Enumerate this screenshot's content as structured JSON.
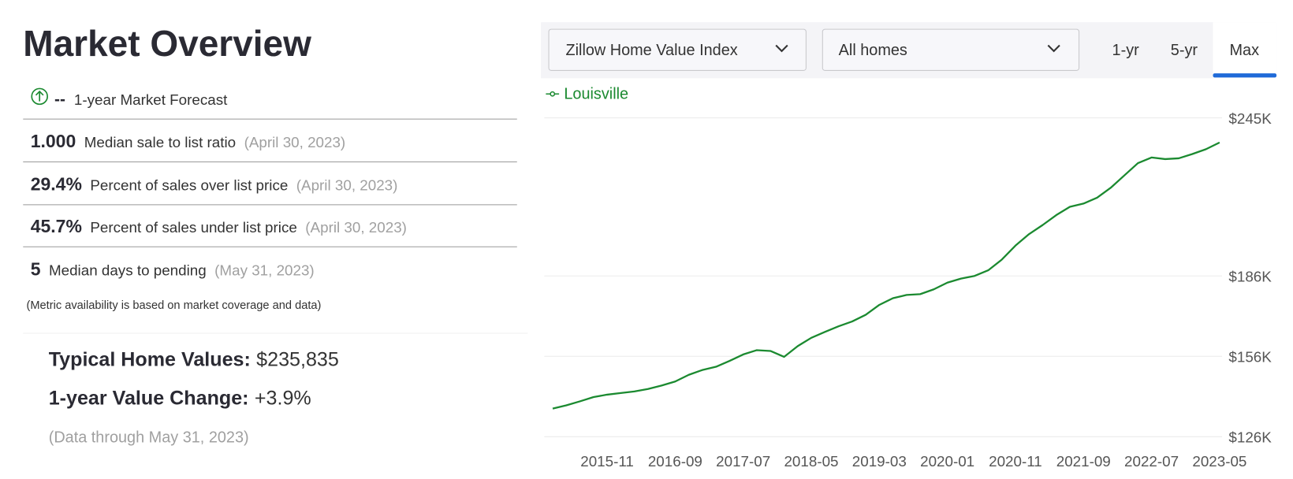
{
  "header": {
    "title": "Market Overview"
  },
  "forecast": {
    "value": "--",
    "label": "1-year Market Forecast"
  },
  "metrics": [
    {
      "value": "1.000",
      "label": "Median sale to list ratio",
      "date": "(April 30, 2023)"
    },
    {
      "value": "29.4%",
      "label": "Percent of sales over list price",
      "date": "(April 30, 2023)"
    },
    {
      "value": "45.7%",
      "label": "Percent of sales under list price",
      "date": "(April 30, 2023)"
    },
    {
      "value": "5",
      "label": "Median days to pending",
      "date": "(May 31, 2023)"
    }
  ],
  "note": "(Metric availability is based on market coverage and data)",
  "summary": {
    "typical_label": "Typical Home Values:",
    "typical_value": "$235,835",
    "change_label": "1-year Value Change:",
    "change_value": "+3.9%",
    "data_through": "(Data through May 31, 2023)"
  },
  "controls": {
    "index_dropdown": "Zillow Home Value Index",
    "home_type_dropdown": "All homes",
    "tabs": [
      "1-yr",
      "5-yr",
      "Max"
    ]
  },
  "chart_data": {
    "type": "line",
    "x": [
      "2015-03",
      "2015-05",
      "2015-07",
      "2015-09",
      "2015-11",
      "2016-01",
      "2016-03",
      "2016-05",
      "2016-07",
      "2016-09",
      "2016-11",
      "2017-01",
      "2017-03",
      "2017-05",
      "2017-07",
      "2017-09",
      "2017-11",
      "2018-01",
      "2018-03",
      "2018-05",
      "2018-07",
      "2018-09",
      "2018-11",
      "2019-01",
      "2019-03",
      "2019-05",
      "2019-07",
      "2019-09",
      "2019-11",
      "2020-01",
      "2020-03",
      "2020-05",
      "2020-07",
      "2020-09",
      "2020-11",
      "2021-01",
      "2021-03",
      "2021-05",
      "2021-07",
      "2021-09",
      "2021-11",
      "2022-01",
      "2022-03",
      "2022-05",
      "2022-07",
      "2022-09",
      "2022-11",
      "2023-01",
      "2023-03",
      "2023-05"
    ],
    "series": [
      {
        "name": "Louisville",
        "color": "#1b8a30",
        "values": [
          136500,
          137700,
          139200,
          140800,
          141700,
          142300,
          142900,
          143800,
          145100,
          146600,
          149100,
          150900,
          152100,
          154300,
          156700,
          158300,
          158000,
          155800,
          159800,
          162900,
          165100,
          167200,
          169000,
          171500,
          175200,
          177700,
          178900,
          179200,
          181000,
          183500,
          185000,
          186000,
          188100,
          192100,
          197300,
          201600,
          205000,
          208700,
          211800,
          213000,
          215200,
          218900,
          223500,
          228100,
          230200,
          229600,
          229900,
          231500,
          233300,
          235800
        ]
      }
    ],
    "xlim": [
      "2015-02",
      "2023-05"
    ],
    "xticks": [
      "2015-11",
      "2016-09",
      "2017-07",
      "2018-05",
      "2019-03",
      "2020-01",
      "2020-11",
      "2021-09",
      "2022-07",
      "2023-05"
    ],
    "ylim": [
      126000,
      245000
    ],
    "yticks": [
      {
        "value": 126000,
        "label": "$126K"
      },
      {
        "value": 156000,
        "label": "$156K"
      },
      {
        "value": 186000,
        "label": "$186K"
      },
      {
        "value": 245000,
        "label": "$245K"
      }
    ],
    "grid": true
  }
}
